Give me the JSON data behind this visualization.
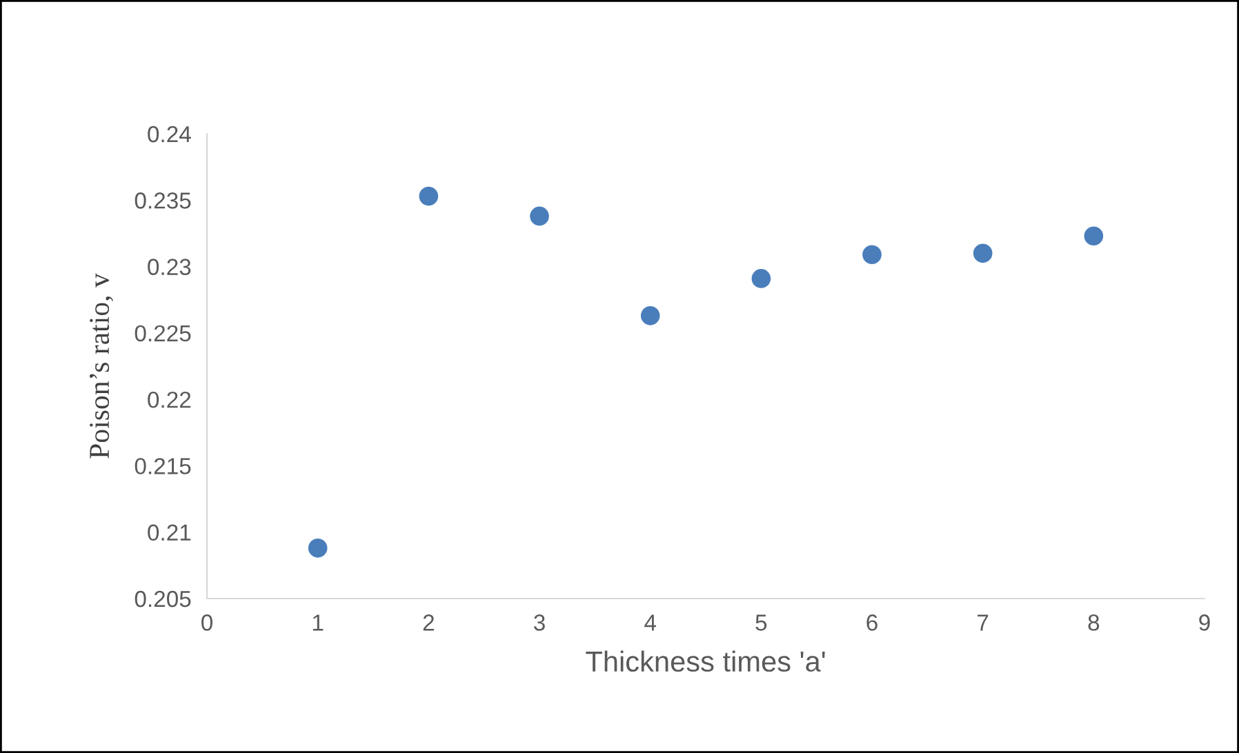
{
  "chart_data": {
    "type": "scatter",
    "xlabel": "Thickness times 'a'",
    "ylabel": "Poison’s ratio, v",
    "x": [
      1,
      2,
      3,
      4,
      5,
      6,
      7,
      8
    ],
    "series": [
      {
        "color": "#4a7ebb",
        "values": [
          0.2088,
          0.2353,
          0.2338,
          0.2263,
          0.2291,
          0.2309,
          0.231,
          0.2323
        ]
      }
    ],
    "xlim": [
      0,
      9
    ],
    "xticks": [
      0,
      1,
      2,
      3,
      4,
      5,
      6,
      7,
      8,
      9
    ],
    "ylim": [
      0.205,
      0.24
    ],
    "yticks": [
      0.205,
      0.21,
      0.215,
      0.22,
      0.225,
      0.23,
      0.235,
      0.24
    ],
    "grid": false,
    "legend": false,
    "marker": "circle"
  }
}
